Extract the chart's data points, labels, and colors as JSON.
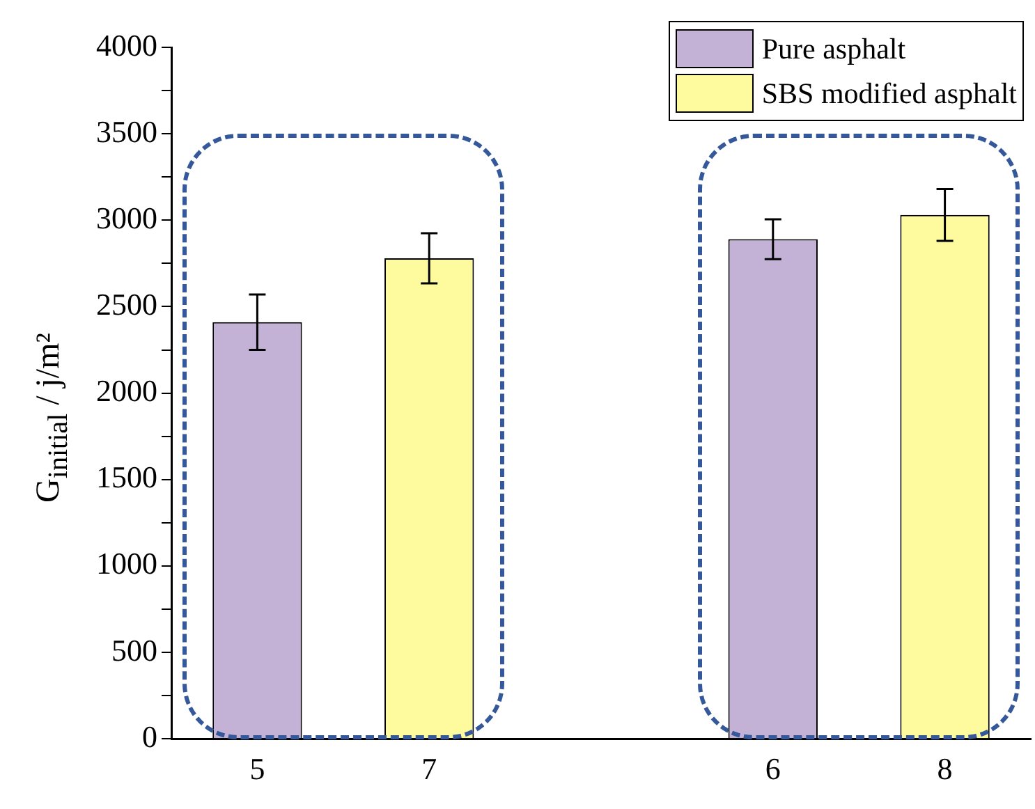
{
  "chart_data": {
    "type": "bar",
    "ylabel": "G$_{initial}$ / j/m²",
    "categories": [
      "5",
      "7",
      null,
      "6",
      "8"
    ],
    "series": [
      {
        "name": "Pure asphalt",
        "color": "#c3b2d6",
        "values": [
          2410,
          null,
          null,
          2890,
          null
        ],
        "errors": [
          160,
          null,
          null,
          115,
          null
        ]
      },
      {
        "name": "SBS modified asphalt",
        "color": "#fdfb9e",
        "values": [
          null,
          2780,
          null,
          null,
          3030
        ],
        "errors": [
          null,
          145,
          null,
          null,
          150
        ]
      }
    ],
    "ylim": [
      0,
      4000
    ],
    "yticks": [
      0,
      {
        "value": 250,
        "label": null
      },
      500,
      {
        "value": 750,
        "label": null
      },
      1000,
      {
        "value": 1250,
        "label": null
      },
      1500,
      {
        "value": 1750,
        "label": null
      },
      2000,
      {
        "value": 2250,
        "label": null
      },
      2500,
      {
        "value": 2750,
        "label": null
      },
      3000,
      {
        "value": 3250,
        "label": null
      },
      3500,
      {
        "value": 3750,
        "label": null
      },
      4000
    ],
    "grid": false,
    "legend": "top right"
  }
}
